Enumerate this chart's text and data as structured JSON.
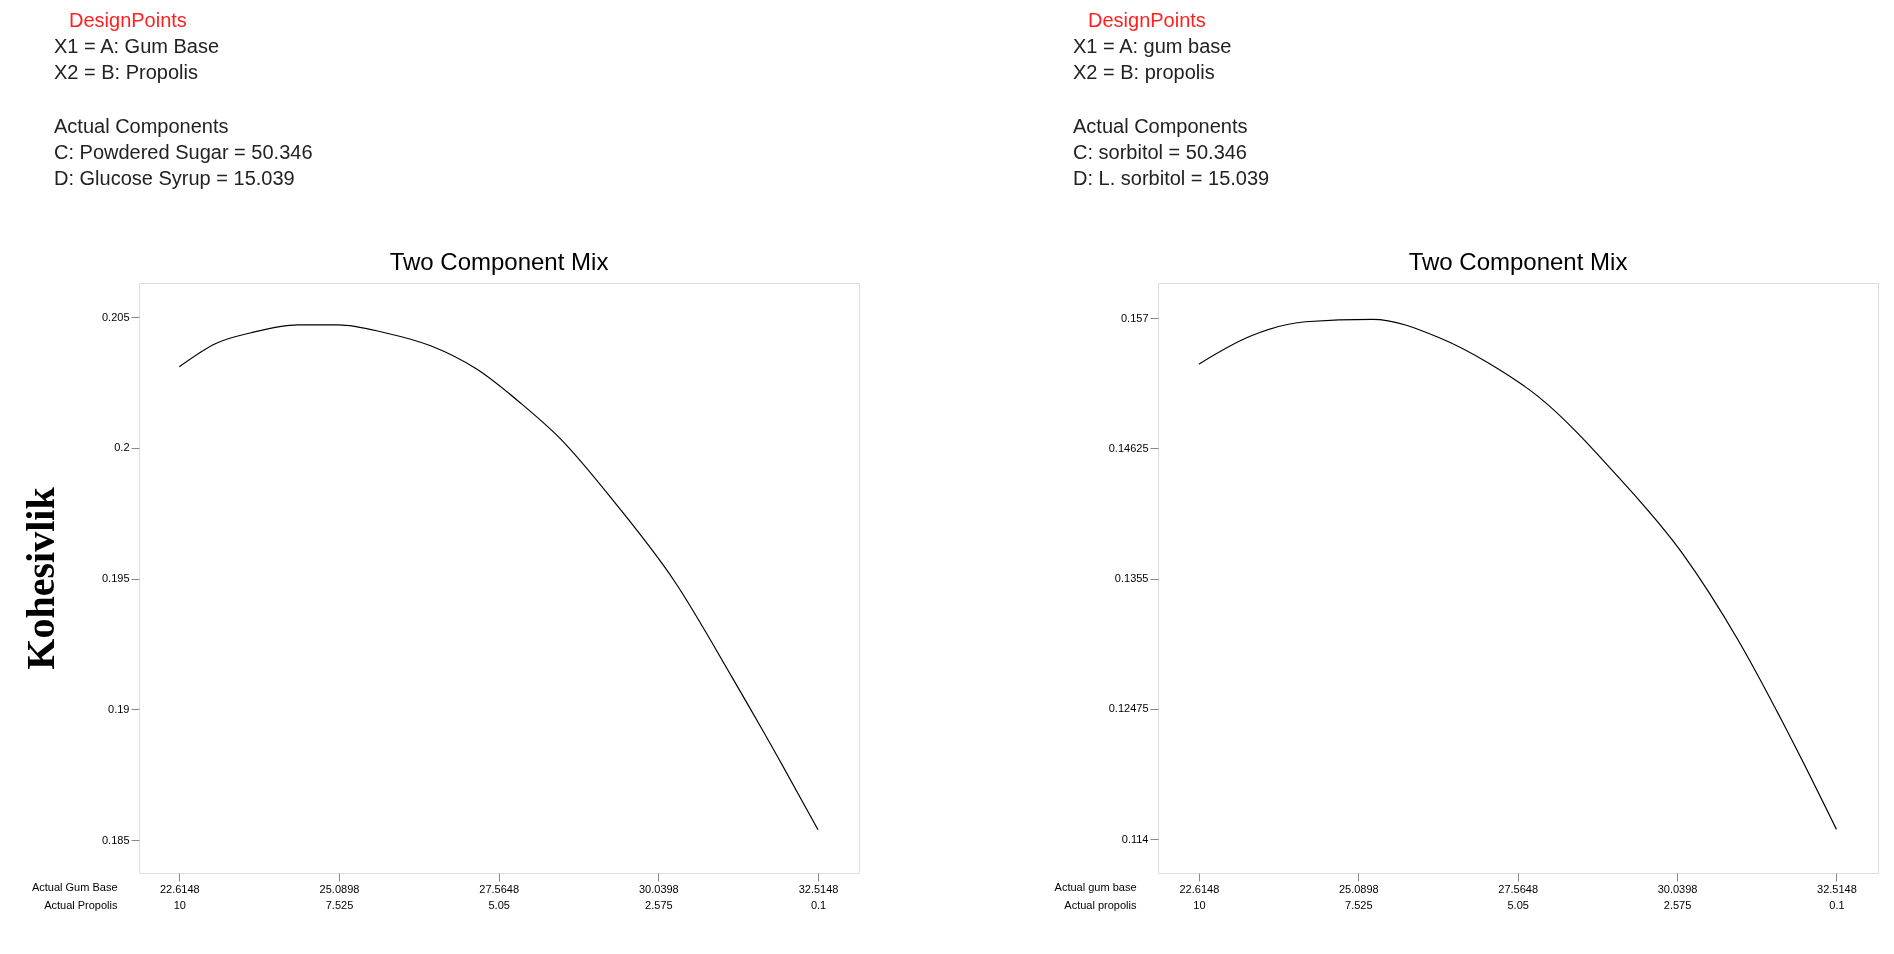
{
  "chart_data": [
    {
      "type": "line",
      "title": "Two Component Mix",
      "ylabel": "Kohesivlik",
      "xlabel": "Actual Gum Base",
      "x2label": "Actual Propolis",
      "annotations": [
        "DesignPoints",
        "X1 = A: Gum Base",
        "X2 = B: Propolis",
        "Actual Components",
        "C: Powdered Sugar = 50.346",
        "D: Glucose Syrup = 15.039"
      ],
      "xlim": [
        21.99,
        33.15
      ],
      "xticks": [
        22.6148,
        25.0898,
        27.5648,
        30.0398,
        32.5148
      ],
      "x2lim": [
        10.625,
        -0.535
      ],
      "x2ticks": [
        10,
        7.525,
        5.05,
        2.575,
        0.1
      ],
      "ylim": [
        0.18375,
        0.2063
      ],
      "yticks": [
        0.185,
        0.19,
        0.195,
        0.2,
        0.205
      ],
      "grid": false,
      "series": [
        {
          "color": "#000000",
          "line_style": "solid",
          "x": [
            22.6148,
            23.19,
            23.73,
            24.45,
            25.08,
            25.8,
            26.51,
            27.23,
            27.91,
            28.5,
            29.4,
            30.29,
            31.19,
            31.91,
            32.5148
          ],
          "values": [
            0.2031,
            0.204,
            0.2044,
            0.2047,
            0.2047,
            0.2044,
            0.2039,
            0.203,
            0.2017,
            0.2004,
            0.1978,
            0.1949,
            0.1912,
            0.1881,
            0.1854
          ]
        }
      ]
    },
    {
      "type": "line",
      "title": "Two Component Mix",
      "xlabel": "Actual gum base",
      "x2label": "Actual propolis",
      "annotations": [
        "DesignPoints",
        "X1 = A: gum base",
        "X2 = B: propolis",
        "Actual Components",
        "C: sorbitol = 50.346",
        "D: L. sorbitol = 15.039"
      ],
      "xlim": [
        21.98,
        33.16
      ],
      "xticks": [
        22.6148,
        25.0898,
        27.5648,
        30.0398,
        32.5148
      ],
      "x2lim": [
        10.635,
        -0.545
      ],
      "x2ticks": [
        10,
        7.525,
        5.05,
        2.575,
        0.1
      ],
      "ylim": [
        0.1112,
        0.1599
      ],
      "yticks": [
        0.114,
        0.12475,
        0.1355,
        0.14625,
        0.157
      ],
      "grid": false,
      "series": [
        {
          "color": "#000000",
          "line_style": "solid",
          "x": [
            22.6148,
            23.41,
            24.27,
            25.31,
            26.34,
            27.11,
            27.89,
            29.09,
            30.12,
            30.98,
            31.84,
            32.5148
          ],
          "values": [
            0.1532,
            0.1555,
            0.1567,
            0.1569,
            0.1554,
            0.1533,
            0.1505,
            0.1441,
            0.1376,
            0.1305,
            0.122,
            0.1148
          ]
        }
      ]
    }
  ]
}
